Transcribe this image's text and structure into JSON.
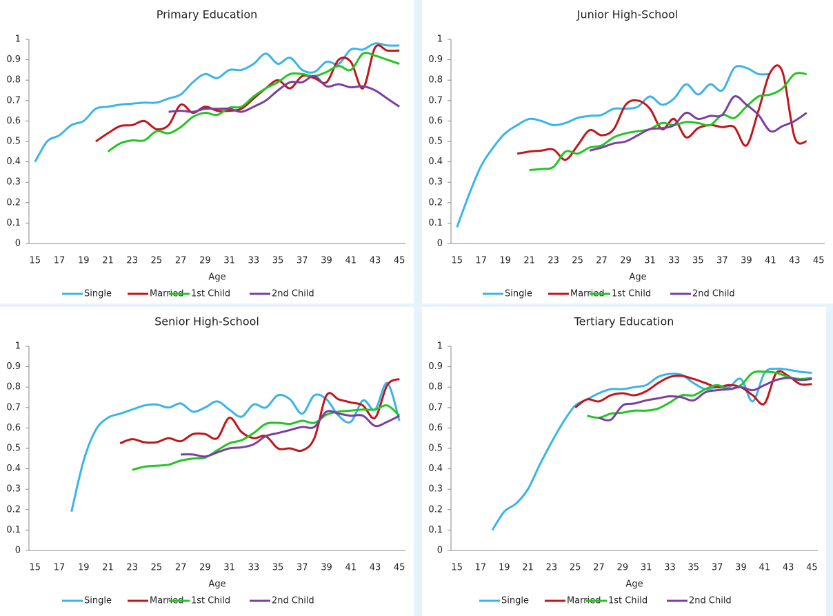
{
  "chart_data": [
    {
      "type": "line",
      "title": "Primary Education",
      "x_label": "Age",
      "categories": [
        15,
        null,
        17,
        null,
        19,
        null,
        21,
        null,
        23,
        null,
        25,
        null,
        27,
        null,
        29,
        null,
        31,
        null,
        33,
        null,
        35,
        null,
        37,
        null,
        39,
        null,
        41,
        null,
        43,
        null,
        45
      ],
      "ylim": [
        0,
        1
      ],
      "yticks": [
        0,
        0.1,
        0.2,
        0.3,
        0.4,
        0.5,
        0.6,
        0.7,
        0.8,
        0.9,
        1
      ],
      "series": [
        {
          "name": "Single",
          "color": "#3ab4e8",
          "values": [
            0.4,
            0.5,
            0.53,
            0.58,
            0.6,
            0.66,
            0.67,
            0.68,
            0.685,
            0.69,
            0.69,
            0.71,
            0.73,
            0.79,
            0.83,
            0.81,
            0.85,
            0.85,
            0.88,
            0.93,
            0.88,
            0.91,
            0.85,
            0.84,
            0.89,
            0.88,
            0.95,
            0.95,
            0.98,
            0.97,
            0.97
          ]
        },
        {
          "name": "Married",
          "color": "#c0161b",
          "values": [
            null,
            null,
            null,
            null,
            null,
            0.5,
            0.54,
            0.575,
            0.58,
            0.6,
            0.56,
            0.58,
            0.68,
            0.64,
            0.67,
            0.65,
            0.65,
            0.66,
            0.71,
            0.76,
            0.8,
            0.76,
            0.82,
            0.81,
            0.79,
            0.9,
            0.89,
            0.76,
            0.96,
            0.945,
            0.945
          ]
        },
        {
          "name": "1st Child",
          "color": "#22c522",
          "values": [
            null,
            null,
            null,
            null,
            null,
            null,
            0.45,
            0.49,
            0.505,
            0.505,
            0.55,
            0.54,
            0.57,
            0.62,
            0.64,
            0.63,
            0.665,
            0.67,
            0.72,
            0.76,
            0.79,
            0.83,
            0.83,
            0.82,
            0.84,
            0.87,
            0.85,
            0.93,
            0.92,
            0.9,
            0.88
          ]
        },
        {
          "name": "2nd Child",
          "color": "#7b3fa0",
          "values": [
            null,
            null,
            null,
            null,
            null,
            null,
            null,
            null,
            null,
            null,
            null,
            0.645,
            0.65,
            0.645,
            0.66,
            0.66,
            0.66,
            0.645,
            0.67,
            0.7,
            0.75,
            0.79,
            0.79,
            0.82,
            0.77,
            0.78,
            0.765,
            0.77,
            0.75,
            0.71,
            0.67
          ]
        }
      ]
    },
    {
      "type": "line",
      "title": "Junior High-School",
      "x_label": "Age",
      "categories": [
        15,
        null,
        17,
        null,
        19,
        null,
        21,
        null,
        23,
        null,
        25,
        null,
        27,
        null,
        29,
        null,
        31,
        null,
        33,
        null,
        35,
        null,
        37,
        null,
        39,
        null,
        41,
        null,
        43,
        null,
        45
      ],
      "ylim": [
        0,
        1
      ],
      "yticks": [
        0,
        0.1,
        0.2,
        0.3,
        0.4,
        0.5,
        0.6,
        0.7,
        0.8,
        0.9,
        1
      ],
      "series": [
        {
          "name": "Single",
          "color": "#3ab4e8",
          "values": [
            0.08,
            0.24,
            0.38,
            0.47,
            0.54,
            0.58,
            0.61,
            0.6,
            0.58,
            0.59,
            0.615,
            0.625,
            0.63,
            0.66,
            0.66,
            0.67,
            0.72,
            0.68,
            0.71,
            0.78,
            0.73,
            0.78,
            0.75,
            0.86,
            0.86,
            0.83,
            0.83,
            null,
            null,
            null,
            null
          ]
        },
        {
          "name": "Married",
          "color": "#c0161b",
          "values": [
            null,
            null,
            null,
            null,
            null,
            0.44,
            0.45,
            0.455,
            0.46,
            0.41,
            0.48,
            0.555,
            0.53,
            0.56,
            0.68,
            0.7,
            0.66,
            0.56,
            0.61,
            0.52,
            0.565,
            0.58,
            0.57,
            0.57,
            0.48,
            0.65,
            0.84,
            0.84,
            0.52,
            0.5,
            null
          ]
        },
        {
          "name": "1st Child",
          "color": "#22c522",
          "values": [
            null,
            null,
            null,
            null,
            null,
            null,
            0.36,
            0.365,
            0.375,
            0.45,
            0.44,
            0.47,
            0.48,
            0.52,
            0.54,
            0.55,
            0.56,
            0.59,
            0.58,
            0.595,
            0.59,
            0.58,
            0.63,
            0.615,
            0.67,
            0.72,
            0.73,
            0.76,
            0.83,
            0.83,
            null
          ]
        },
        {
          "name": "2nd Child",
          "color": "#7b3fa0",
          "values": [
            null,
            null,
            null,
            null,
            null,
            null,
            null,
            null,
            null,
            null,
            null,
            0.455,
            0.47,
            0.49,
            0.5,
            0.53,
            0.56,
            0.565,
            0.58,
            0.64,
            0.61,
            0.625,
            0.63,
            0.72,
            0.68,
            0.63,
            0.55,
            0.575,
            0.6,
            0.64,
            null
          ]
        }
      ]
    },
    {
      "type": "line",
      "title": "Senior High-School",
      "x_label": "Age",
      "categories": [
        15,
        null,
        17,
        null,
        19,
        null,
        21,
        null,
        23,
        null,
        25,
        null,
        27,
        null,
        29,
        null,
        31,
        null,
        33,
        null,
        35,
        null,
        37,
        null,
        39,
        null,
        41,
        null,
        43,
        null,
        45
      ],
      "ylim": [
        0,
        1
      ],
      "yticks": [
        0,
        0.1,
        0.2,
        0.3,
        0.4,
        0.5,
        0.6,
        0.7,
        0.8,
        0.9,
        1
      ],
      "series": [
        {
          "name": "Single",
          "color": "#3ab4e8",
          "values": [
            null,
            null,
            null,
            0.19,
            0.44,
            0.59,
            0.65,
            0.67,
            0.69,
            0.71,
            0.715,
            0.7,
            0.72,
            0.68,
            0.7,
            0.73,
            0.69,
            0.655,
            0.715,
            0.7,
            0.76,
            0.74,
            0.67,
            0.76,
            0.74,
            0.66,
            0.63,
            0.735,
            0.69,
            0.82,
            0.635
          ]
        },
        {
          "name": "Married",
          "color": "#c0161b",
          "values": [
            null,
            null,
            null,
            null,
            null,
            null,
            null,
            0.525,
            0.545,
            0.53,
            0.53,
            0.55,
            0.535,
            0.57,
            0.57,
            0.55,
            0.65,
            0.58,
            0.55,
            0.56,
            0.5,
            0.5,
            0.49,
            0.55,
            0.76,
            0.74,
            0.725,
            0.71,
            0.65,
            0.81,
            0.84
          ]
        },
        {
          "name": "1st Child",
          "color": "#22c522",
          "values": [
            null,
            null,
            null,
            null,
            null,
            null,
            null,
            null,
            0.395,
            0.41,
            0.415,
            0.42,
            0.44,
            0.45,
            0.455,
            0.49,
            0.525,
            0.54,
            0.575,
            0.62,
            0.625,
            0.62,
            0.635,
            0.625,
            0.665,
            0.68,
            0.685,
            0.69,
            0.69,
            0.71,
            0.66
          ]
        },
        {
          "name": "2nd Child",
          "color": "#7b3fa0",
          "values": [
            null,
            null,
            null,
            null,
            null,
            null,
            null,
            null,
            null,
            null,
            null,
            null,
            0.47,
            0.47,
            0.46,
            0.48,
            0.5,
            0.505,
            0.52,
            0.56,
            0.575,
            0.59,
            0.605,
            0.605,
            0.68,
            0.67,
            0.66,
            0.66,
            0.61,
            0.63,
            0.66
          ]
        }
      ]
    },
    {
      "type": "line",
      "title": "Tertiary Education",
      "x_label": "Age",
      "categories": [
        15,
        null,
        17,
        null,
        19,
        null,
        21,
        null,
        23,
        null,
        25,
        null,
        27,
        null,
        29,
        null,
        31,
        null,
        33,
        null,
        35,
        null,
        37,
        null,
        39,
        null,
        41,
        null,
        43,
        null,
        45
      ],
      "ylim": [
        0,
        1
      ],
      "yticks": [
        0,
        0.1,
        0.2,
        0.3,
        0.4,
        0.5,
        0.6,
        0.7,
        0.8,
        0.9,
        1
      ],
      "series": [
        {
          "name": "Single",
          "color": "#3ab4e8",
          "values": [
            null,
            null,
            null,
            0.1,
            0.19,
            0.23,
            0.3,
            0.42,
            0.53,
            0.63,
            0.71,
            0.74,
            0.77,
            0.79,
            0.79,
            0.8,
            0.81,
            0.85,
            0.865,
            0.86,
            0.82,
            0.79,
            0.8,
            0.8,
            0.84,
            0.73,
            0.87,
            0.89,
            0.885,
            0.875,
            0.87
          ]
        },
        {
          "name": "Married",
          "color": "#c0161b",
          "values": [
            null,
            null,
            null,
            null,
            null,
            null,
            null,
            null,
            null,
            null,
            0.7,
            0.74,
            0.73,
            0.76,
            0.77,
            0.76,
            0.78,
            0.82,
            0.85,
            0.855,
            0.84,
            0.82,
            0.8,
            0.81,
            0.8,
            0.76,
            0.72,
            0.87,
            0.855,
            0.815,
            0.815
          ]
        },
        {
          "name": "1st Child",
          "color": "#22c522",
          "values": [
            null,
            null,
            null,
            null,
            null,
            null,
            null,
            null,
            null,
            null,
            null,
            0.66,
            0.65,
            0.67,
            0.675,
            0.685,
            0.685,
            0.695,
            0.725,
            0.76,
            0.76,
            0.79,
            0.81,
            0.79,
            0.81,
            0.87,
            0.875,
            0.87,
            0.85,
            0.84,
            0.845
          ]
        },
        {
          "name": "2nd Child",
          "color": "#7b3fa0",
          "values": [
            null,
            null,
            null,
            null,
            null,
            null,
            null,
            null,
            null,
            null,
            null,
            null,
            0.65,
            0.64,
            0.71,
            0.72,
            0.735,
            0.745,
            0.755,
            0.75,
            0.735,
            0.775,
            0.785,
            0.79,
            0.8,
            0.785,
            0.81,
            0.835,
            0.845,
            0.835,
            0.84
          ]
        }
      ]
    }
  ]
}
